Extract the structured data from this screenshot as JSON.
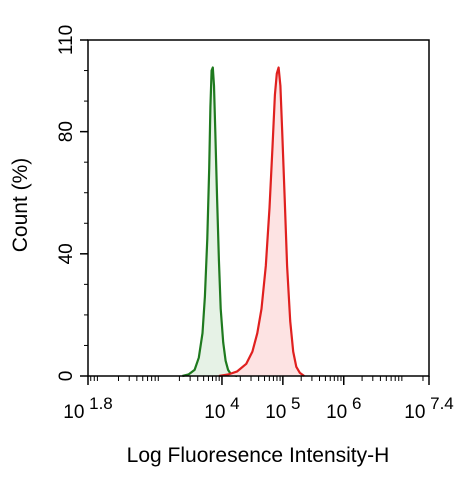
{
  "chart_data": {
    "type": "area",
    "title": "",
    "xlabel": "Log Fluoresence Intensity-H",
    "ylabel": "Count  (%)",
    "xscale": "log",
    "xlim_log10": [
      1.8,
      7.4
    ],
    "ylim": [
      0,
      110
    ],
    "grid": false,
    "y_ticks": [
      0,
      40,
      80,
      110
    ],
    "x_ticks": [
      {
        "log10": 1.8,
        "base": "10",
        "exp": "1.8"
      },
      {
        "log10": 4,
        "base": "10",
        "exp": "4"
      },
      {
        "log10": 5,
        "base": "10",
        "exp": "5"
      },
      {
        "log10": 6,
        "base": "10",
        "exp": "6"
      },
      {
        "log10": 7.4,
        "base": "10",
        "exp": "7.4"
      }
    ],
    "series": [
      {
        "color": "#1f7a1f",
        "fill": "#e6f2e6",
        "points_log10x_y": [
          [
            3.35,
            0
          ],
          [
            3.45,
            0.5
          ],
          [
            3.55,
            2
          ],
          [
            3.62,
            6
          ],
          [
            3.68,
            14
          ],
          [
            3.72,
            26
          ],
          [
            3.76,
            45
          ],
          [
            3.79,
            68
          ],
          [
            3.81,
            88
          ],
          [
            3.83,
            100
          ],
          [
            3.85,
            101
          ],
          [
            3.87,
            95
          ],
          [
            3.89,
            80
          ],
          [
            3.92,
            58
          ],
          [
            3.95,
            38
          ],
          [
            3.98,
            22
          ],
          [
            4.02,
            11
          ],
          [
            4.06,
            5
          ],
          [
            4.1,
            2
          ],
          [
            4.15,
            0.5
          ],
          [
            4.25,
            0
          ]
        ]
      },
      {
        "color": "#e0201f",
        "fill": "#fde3e3",
        "points_log10x_y": [
          [
            3.95,
            0
          ],
          [
            4.1,
            0.5
          ],
          [
            4.25,
            1.5
          ],
          [
            4.4,
            4
          ],
          [
            4.5,
            8
          ],
          [
            4.58,
            14
          ],
          [
            4.65,
            22
          ],
          [
            4.72,
            36
          ],
          [
            4.78,
            55
          ],
          [
            4.83,
            75
          ],
          [
            4.87,
            92
          ],
          [
            4.9,
            99
          ],
          [
            4.93,
            101
          ],
          [
            4.96,
            95
          ],
          [
            4.99,
            80
          ],
          [
            5.03,
            58
          ],
          [
            5.07,
            36
          ],
          [
            5.12,
            18
          ],
          [
            5.17,
            8
          ],
          [
            5.22,
            3
          ],
          [
            5.28,
            1
          ],
          [
            5.35,
            0
          ]
        ]
      }
    ]
  }
}
